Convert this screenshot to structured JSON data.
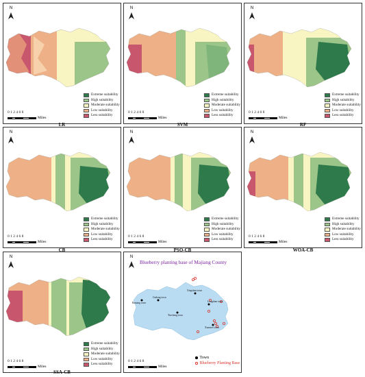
{
  "legend": [
    {
      "label": "Extreme suitability",
      "color": "#2e7a4a"
    },
    {
      "label": "High suitability",
      "color": "#9cc58a"
    },
    {
      "label": "Moderate suitability",
      "color": "#f8f5c2"
    },
    {
      "label": "Low suitability",
      "color": "#eeb187"
    },
    {
      "label": "Less suitability",
      "color": "#c8566c"
    }
  ],
  "north_label": "N",
  "scale": {
    "numbers": "0 1 2    4     6     8",
    "unit": "Miles"
  },
  "panels": [
    {
      "caption": "LR"
    },
    {
      "caption": "SVM"
    },
    {
      "caption": "RF"
    },
    {
      "caption": "CB"
    },
    {
      "caption": "PSO-CB"
    },
    {
      "caption": "WOA-CB"
    },
    {
      "caption": "SSA-CB"
    }
  ],
  "base_map": {
    "title": "Blueberry planting base of Majiang County",
    "towns": [
      "Xingshan town",
      "Gudong town",
      "Bamang town",
      "Longshan town",
      "Yincheng town",
      "Xuanwei town"
    ],
    "legend": [
      {
        "label": "Town",
        "color": "#000000"
      },
      {
        "label": "Blueberry Planting Base",
        "color": "#d9342b"
      }
    ],
    "region_color": "#b9dcf3"
  }
}
